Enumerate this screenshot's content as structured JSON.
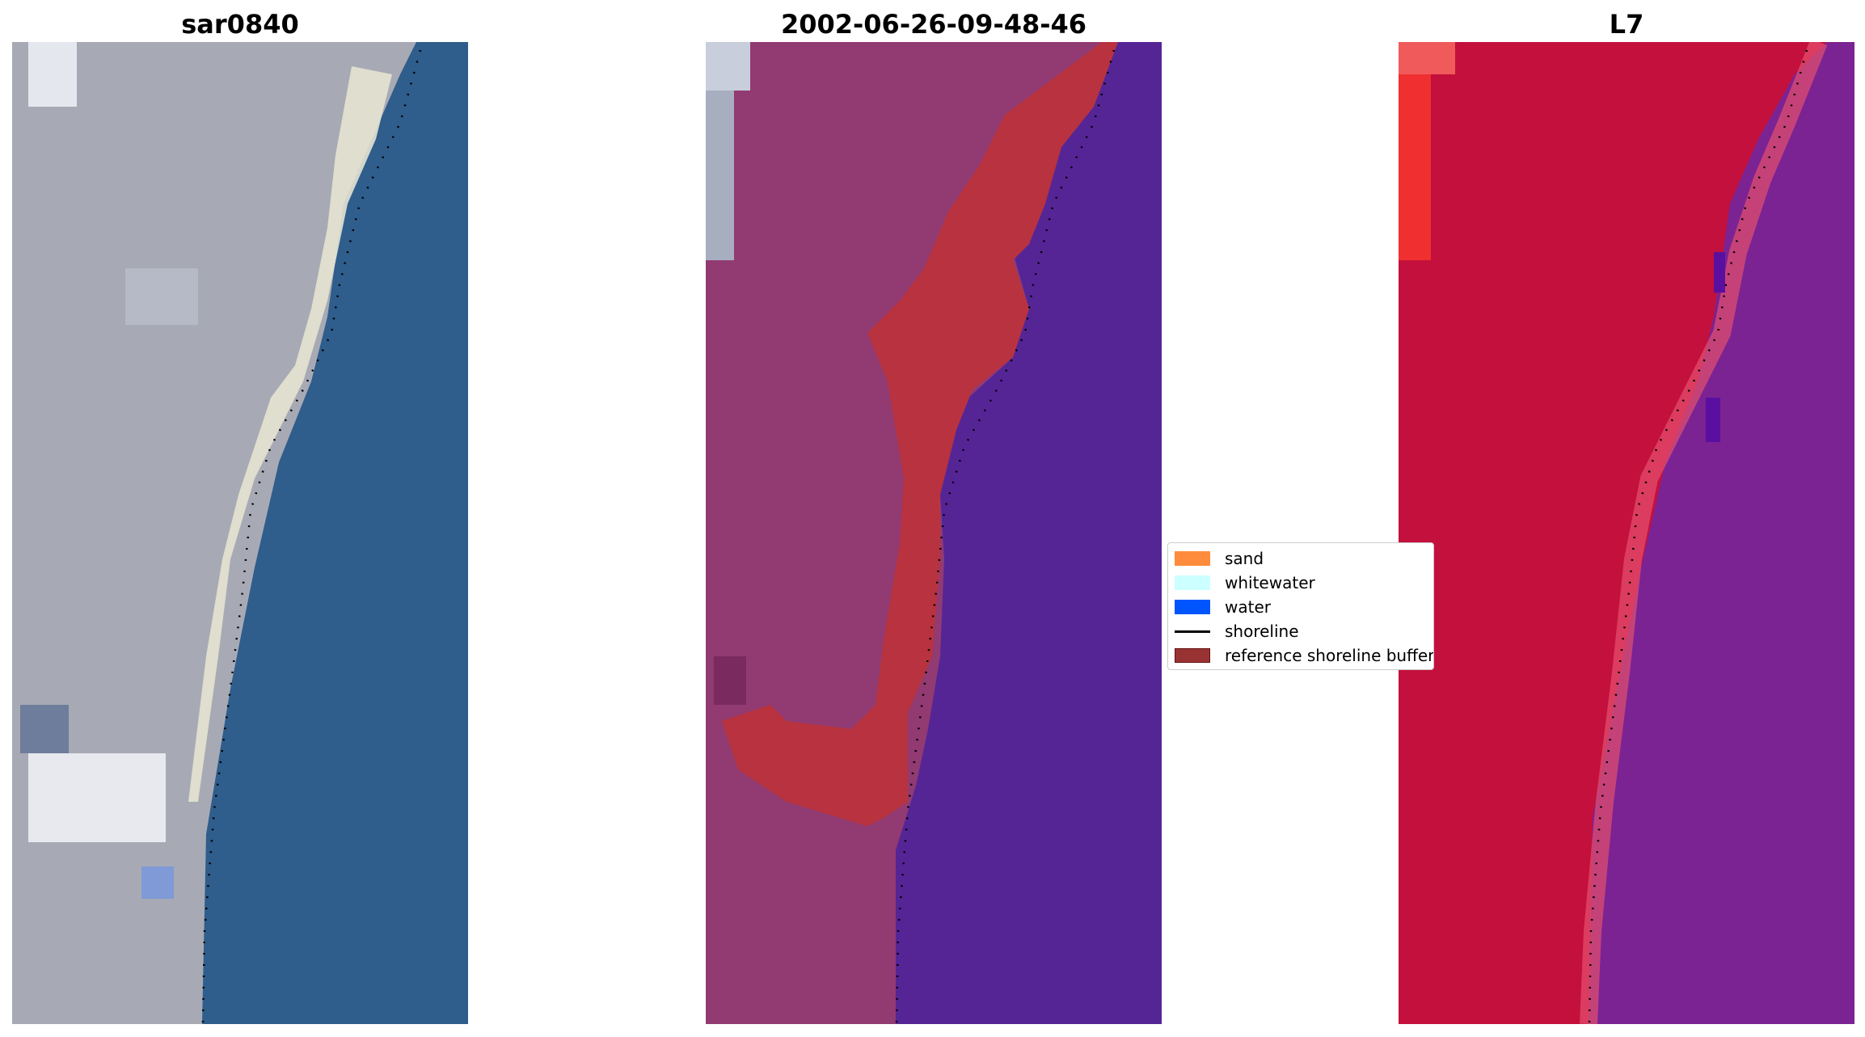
{
  "panels": [
    {
      "id": "rgb",
      "title": "sar0840"
    },
    {
      "id": "classified",
      "title": "2002-06-26-09-48-46"
    },
    {
      "id": "mndwi",
      "title": "L7"
    }
  ],
  "legend": {
    "items": [
      {
        "label": "sand",
        "color": "#ff8c3c",
        "kind": "patch"
      },
      {
        "label": "whitewater",
        "color": "#ccffff",
        "kind": "patch"
      },
      {
        "label": "water",
        "color": "#0055ff",
        "kind": "patch"
      },
      {
        "label": "shoreline",
        "color": "#000000",
        "kind": "line"
      },
      {
        "label": "reference shoreline buffer",
        "color": "#993333",
        "kind": "patch"
      }
    ]
  },
  "colors": {
    "rgb_land": "#a7aab4",
    "rgb_water": "#2f5d8c",
    "rgb_beach": "#e6e3d2",
    "classified_land": "#923a72",
    "classified_water": "#552596",
    "classified_buffer": "#b8333f",
    "index_land": "#c4103c",
    "index_water": "#7b2393",
    "index_edge": "#e6506e",
    "shoreline_dots": "#000000"
  }
}
